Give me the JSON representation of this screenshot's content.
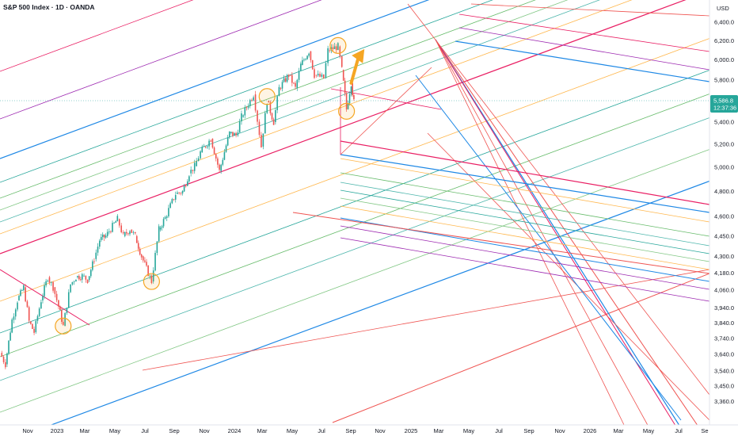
{
  "chart_data": {
    "type": "candlestick",
    "title": "S&P 500 Index · 1D · OANDA",
    "y_unit": "USD",
    "y_scale": "log",
    "ylim": [
      3300,
      6450
    ],
    "y_ticks": [
      "6,400.0",
      "6,200.0",
      "6,000.0",
      "5,800.0",
      "5,600.0",
      "5,400.0",
      "5,200.0",
      "5,000.0",
      "4,800.0",
      "4,600.0",
      "4,450.0",
      "4,300.0",
      "4,180.0",
      "4,060.0",
      "3,940.0",
      "3,840.0",
      "3,740.0",
      "3,640.0",
      "3,540.0",
      "3,450.0",
      "3,360.0"
    ],
    "x_ticks": [
      "Nov",
      "2023",
      "Mar",
      "May",
      "Jul",
      "Sep",
      "Nov",
      "2024",
      "Mar",
      "May",
      "Jul",
      "Sep",
      "Nov",
      "2025",
      "Mar",
      "May",
      "Jul",
      "Sep",
      "Nov",
      "2026",
      "Mar",
      "May",
      "Jul",
      "Se"
    ],
    "last_price": "5,586.8",
    "countdown": "12:37:36",
    "series": [
      {
        "points": [
          [
            "2022-10-01",
            3650
          ],
          [
            "2022-10-15",
            3580
          ],
          [
            "2022-11-01",
            3860
          ],
          [
            "2022-11-15",
            3990
          ],
          [
            "2022-12-01",
            4080
          ],
          [
            "2022-12-15",
            3850
          ],
          [
            "2022-12-28",
            3780
          ],
          [
            "2023-01-15",
            3990
          ],
          [
            "2023-02-01",
            4150
          ],
          [
            "2023-02-15",
            4080
          ],
          [
            "2023-03-01",
            3950
          ],
          [
            "2023-03-13",
            3820
          ],
          [
            "2023-04-01",
            4100
          ],
          [
            "2023-04-15",
            4150
          ],
          [
            "2023-05-01",
            4160
          ],
          [
            "2023-05-15",
            4130
          ],
          [
            "2023-06-01",
            4280
          ],
          [
            "2023-06-15",
            4420
          ],
          [
            "2023-07-01",
            4450
          ],
          [
            "2023-07-31",
            4580
          ],
          [
            "2023-08-15",
            4450
          ],
          [
            "2023-09-01",
            4500
          ],
          [
            "2023-09-15",
            4450
          ],
          [
            "2023-10-01",
            4300
          ],
          [
            "2023-10-27",
            4120
          ],
          [
            "2023-11-15",
            4500
          ],
          [
            "2023-12-01",
            4590
          ],
          [
            "2023-12-28",
            4780
          ],
          [
            "2024-01-15",
            4800
          ],
          [
            "2024-02-01",
            4950
          ],
          [
            "2024-02-15",
            5010
          ],
          [
            "2024-03-01",
            5130
          ],
          [
            "2024-03-28",
            5250
          ],
          [
            "2024-04-19",
            4970
          ],
          [
            "2024-05-15",
            5300
          ],
          [
            "2024-06-01",
            5280
          ],
          [
            "2024-06-15",
            5450
          ],
          [
            "2024-07-16",
            5660
          ],
          [
            "2024-08-05",
            5180
          ],
          [
            "2024-08-20",
            5600
          ],
          [
            "2024-09-06",
            5400
          ],
          [
            "2024-09-20",
            5720
          ],
          [
            "2024-10-15",
            5850
          ],
          [
            "2024-11-01",
            5720
          ],
          [
            "2024-11-15",
            5950
          ],
          [
            "2024-12-06",
            6090
          ],
          [
            "2024-12-20",
            5850
          ],
          [
            "2025-01-13",
            5820
          ],
          [
            "2025-01-24",
            6100
          ],
          [
            "2025-02-19",
            6140
          ],
          [
            "2025-03-01",
            5900
          ],
          [
            "2025-03-13",
            5520
          ],
          [
            "2025-03-25",
            5770
          ],
          [
            "2025-04-01",
            5586.8
          ]
        ]
      }
    ],
    "annotations": [
      {
        "type": "circle",
        "date": "2023-03-13",
        "price": 3820
      },
      {
        "type": "circle",
        "date": "2023-10-27",
        "price": 4120
      },
      {
        "type": "circle",
        "date": "2024-08-20",
        "price": 5640
      },
      {
        "type": "circle",
        "date": "2025-02-19",
        "price": 6150
      },
      {
        "type": "circle",
        "date": "2025-03-13",
        "price": 5500
      },
      {
        "type": "arrow",
        "from_date": "2025-03-25",
        "from_price": 5770,
        "to_date": "2025-04-20",
        "to_price": 6080
      }
    ],
    "drawing_tools": [
      "pitchfork",
      "fibonacci channel"
    ]
  },
  "colors": {
    "up": "#26a69a",
    "down": "#ef5350",
    "price_tag": "#26a69a",
    "circle": "#f5a623",
    "arrow": "#f5a623",
    "line_palette": [
      "#e91e63",
      "#1e88e5",
      "#26a69a",
      "#66bb6a",
      "#ffb74d",
      "#9c27b0",
      "#ef5350",
      "#81c784",
      "#4db6ac"
    ]
  }
}
